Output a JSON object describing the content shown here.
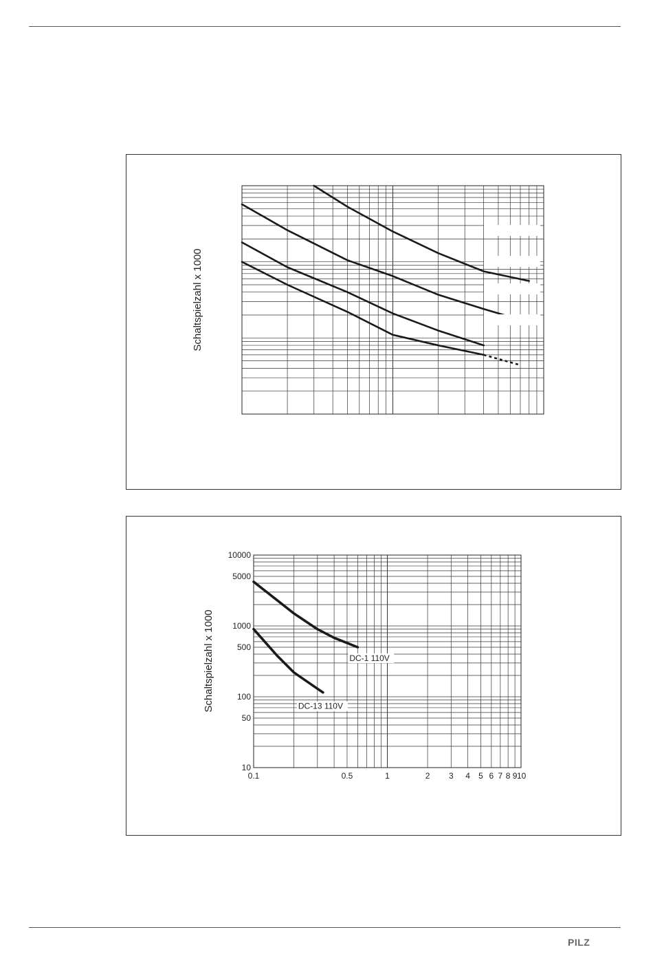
{
  "footer": {
    "logo_text": "PILZ"
  },
  "chart_data": [
    {
      "type": "line",
      "title": "",
      "xlabel": "",
      "ylabel": "Schaltspielzahl x 1000",
      "x_scale": "log",
      "y_scale": "log",
      "xlim": [
        0.1,
        10
      ],
      "ylim": [
        10,
        10000
      ],
      "tick_labels_visible": false,
      "grid": true,
      "series": [
        {
          "x": [
            0.3,
            0.5,
            1,
            2,
            4,
            8
          ],
          "y": [
            10000,
            5300,
            2500,
            1300,
            750,
            560
          ]
        },
        {
          "x": [
            0.1,
            0.2,
            0.5,
            1,
            2,
            4,
            8
          ],
          "y": [
            5700,
            2600,
            1050,
            650,
            370,
            240,
            160
          ]
        },
        {
          "x": [
            0.1,
            0.2,
            0.5,
            1,
            2,
            4
          ],
          "y": [
            1800,
            850,
            400,
            210,
            125,
            80
          ]
        },
        {
          "x": [
            0.1,
            0.2,
            0.5,
            1,
            2,
            4
          ],
          "y": [
            1000,
            500,
            220,
            110,
            80,
            60
          ]
        }
      ],
      "dashed_tail": {
        "series_index": 3,
        "x": [
          4,
          7
        ],
        "y": [
          60,
          44
        ]
      }
    },
    {
      "type": "line",
      "title": "",
      "xlabel": "",
      "ylabel": "Schaltspielzahl x 1000",
      "x_scale": "log",
      "y_scale": "log",
      "xlim": [
        0.1,
        10
      ],
      "ylim": [
        10,
        10000
      ],
      "xticks": [
        "0.1",
        "0.5",
        "1",
        "2",
        "3",
        "4",
        "5",
        "6",
        "7",
        "8",
        "9",
        "10"
      ],
      "xtick_values": [
        0.1,
        0.5,
        1,
        2,
        3,
        4,
        5,
        6,
        7,
        8,
        9,
        10
      ],
      "yticks": [
        "10000",
        "5000",
        "1000",
        "500",
        "100",
        "50",
        "10"
      ],
      "ytick_values": [
        10000,
        5000,
        1000,
        500,
        100,
        50,
        10
      ],
      "grid": true,
      "series": [
        {
          "name": "DC-1 110V",
          "x": [
            0.1,
            0.15,
            0.2,
            0.3,
            0.4,
            0.6
          ],
          "y": [
            4200,
            2300,
            1500,
            900,
            680,
            500
          ]
        },
        {
          "name": "DC-13 110V",
          "x": [
            0.1,
            0.15,
            0.2,
            0.3,
            0.33
          ],
          "y": [
            900,
            380,
            220,
            130,
            115
          ]
        }
      ]
    }
  ]
}
